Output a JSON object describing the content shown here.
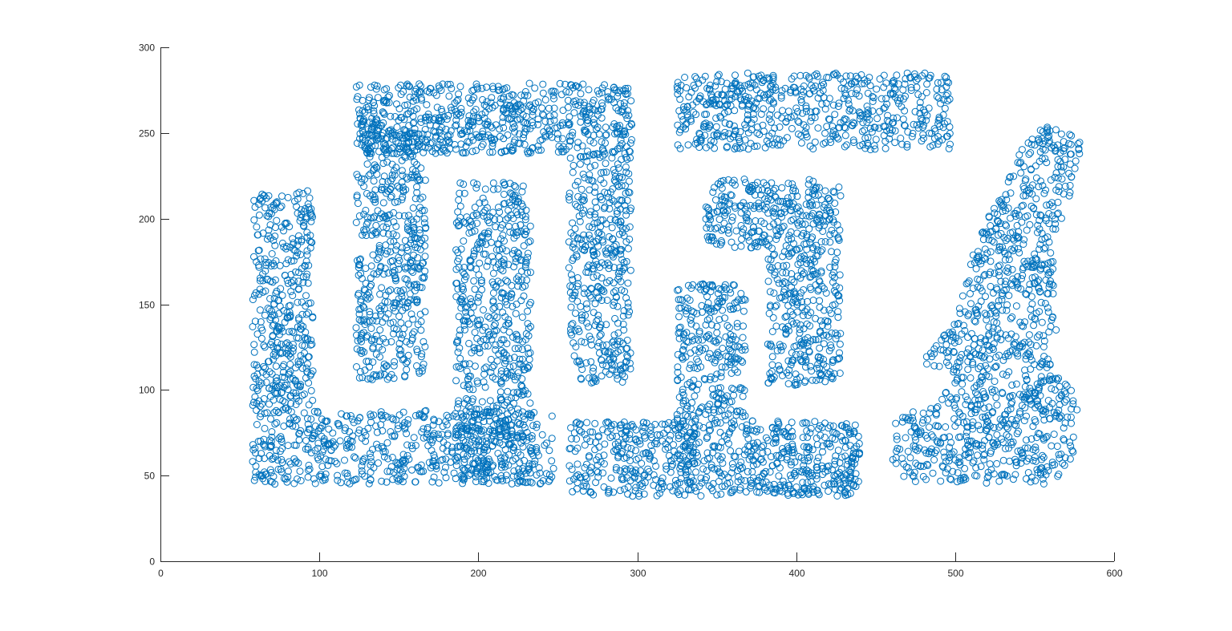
{
  "chart_data": {
    "type": "scatter",
    "marker": "circle-open",
    "marker_color": "#0072BD",
    "axis_color": "#262626",
    "background": "#ffffff",
    "grid": false,
    "box": false,
    "xlim": [
      0,
      600
    ],
    "ylim": [
      0,
      300
    ],
    "xticks": [
      0,
      100,
      200,
      300,
      400,
      500,
      600
    ],
    "yticks": [
      0,
      50,
      100,
      150,
      200,
      250,
      300
    ],
    "xtick_labels": [
      "0",
      "100",
      "200",
      "300",
      "400",
      "500",
      "600"
    ],
    "ytick_labels": [
      "0",
      "50",
      "100",
      "150",
      "200",
      "250",
      "300"
    ],
    "point_count_approx": 6000,
    "regions": [
      {
        "shape": "rect",
        "x": [
          58,
          96
        ],
        "y": [
          45,
          217
        ],
        "count": 520
      },
      {
        "shape": "rect",
        "x": [
          96,
          248
        ],
        "y": [
          45,
          88
        ],
        "count": 470
      },
      {
        "shape": "rect",
        "x": [
          123,
          167
        ],
        "y": [
          103,
          258
        ],
        "count": 520
      },
      {
        "shape": "rect",
        "x": [
          123,
          297
        ],
        "y": [
          238,
          279
        ],
        "count": 650
      },
      {
        "shape": "rect",
        "x": [
          186,
          233
        ],
        "y": [
          45,
          222
        ],
        "count": 620
      },
      {
        "shape": "rect",
        "x": [
          257,
          296
        ],
        "y": [
          103,
          238
        ],
        "count": 400
      },
      {
        "shape": "rect",
        "x": [
          257,
          337
        ],
        "y": [
          38,
          82
        ],
        "count": 280
      },
      {
        "shape": "rect",
        "x": [
          325,
          368
        ],
        "y": [
          38,
          162
        ],
        "count": 420
      },
      {
        "shape": "rect",
        "x": [
          368,
          440
        ],
        "y": [
          38,
          82
        ],
        "count": 330
      },
      {
        "shape": "rect",
        "x": [
          325,
          497
        ],
        "y": [
          240,
          285
        ],
        "count": 600
      },
      {
        "shape": "rect",
        "x": [
          342,
          428
        ],
        "y": [
          183,
          223
        ],
        "count": 300
      },
      {
        "shape": "rect",
        "x": [
          382,
          428
        ],
        "y": [
          102,
          183
        ],
        "count": 300
      },
      {
        "shape": "poly",
        "points": [
          [
            478,
            115
          ],
          [
            500,
            140
          ],
          [
            510,
            178
          ],
          [
            522,
            205
          ],
          [
            540,
            238
          ],
          [
            555,
            255
          ],
          [
            580,
            248
          ],
          [
            578,
            225
          ],
          [
            562,
            188
          ],
          [
            565,
            120
          ],
          [
            578,
            90
          ],
          [
            575,
            60
          ],
          [
            560,
            45
          ],
          [
            470,
            45
          ],
          [
            460,
            58
          ],
          [
            462,
            85
          ],
          [
            488,
            90
          ],
          [
            500,
            110
          ]
        ],
        "count": 1050
      }
    ]
  }
}
